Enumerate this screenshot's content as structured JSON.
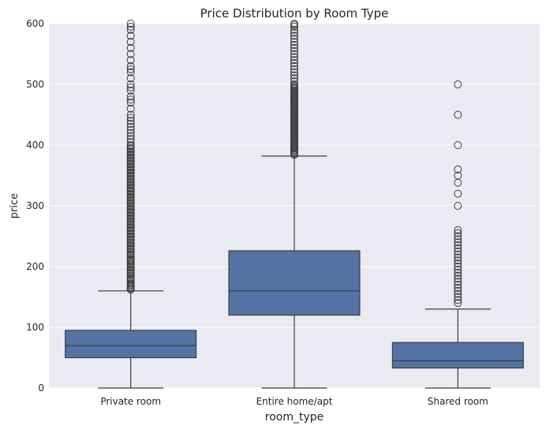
{
  "chart_data": {
    "type": "box",
    "title": "Price Distribution by Room Type",
    "xlabel": "room_type",
    "ylabel": "price",
    "ylim": [
      0,
      600
    ],
    "yticks": [
      0,
      100,
      200,
      300,
      400,
      500,
      600
    ],
    "grid": true,
    "colors": {
      "background": "#eaeaf2",
      "box": "#5572a4",
      "line": "#3d3d3d",
      "grid": "#ffffff"
    },
    "categories": [
      "Private room",
      "Entire home/apt",
      "Shared room"
    ],
    "boxes": [
      {
        "category": "Private room",
        "whisker_low": 0,
        "q1": 50,
        "median": 70,
        "q3": 95,
        "whisker_high": 160,
        "outliers": [
          162,
          164,
          166,
          168,
          170,
          172,
          175,
          178,
          180,
          182,
          185,
          188,
          190,
          193,
          195,
          198,
          200,
          203,
          205,
          208,
          210,
          212,
          215,
          218,
          220,
          222,
          225,
          228,
          230,
          233,
          235,
          238,
          240,
          243,
          245,
          248,
          250,
          253,
          255,
          258,
          260,
          263,
          265,
          268,
          270,
          273,
          275,
          278,
          280,
          283,
          285,
          288,
          290,
          293,
          295,
          298,
          300,
          303,
          305,
          308,
          310,
          313,
          315,
          318,
          320,
          323,
          325,
          328,
          330,
          333,
          335,
          338,
          340,
          343,
          345,
          348,
          350,
          353,
          355,
          358,
          360,
          363,
          365,
          368,
          370,
          373,
          375,
          378,
          380,
          383,
          385,
          388,
          390,
          393,
          395,
          398,
          400,
          405,
          410,
          415,
          420,
          425,
          430,
          435,
          440,
          445,
          450,
          460,
          470,
          475,
          480,
          490,
          495,
          500,
          510,
          520,
          525,
          530,
          540,
          550,
          560,
          570,
          580,
          590,
          595,
          600
        ]
      },
      {
        "category": "Entire home/apt",
        "whisker_low": 0,
        "q1": 120,
        "median": 160,
        "q3": 226,
        "whisker_high": 382,
        "outliers": [
          384,
          386,
          388,
          390,
          392,
          394,
          396,
          398,
          400,
          402,
          404,
          406,
          408,
          410,
          412,
          414,
          416,
          418,
          420,
          422,
          424,
          426,
          428,
          430,
          432,
          434,
          436,
          438,
          440,
          442,
          444,
          446,
          448,
          450,
          452,
          454,
          456,
          458,
          460,
          462,
          464,
          466,
          468,
          470,
          472,
          474,
          476,
          478,
          480,
          482,
          484,
          486,
          488,
          490,
          492,
          494,
          496,
          498,
          500,
          505,
          510,
          515,
          520,
          525,
          530,
          535,
          540,
          545,
          550,
          555,
          560,
          565,
          570,
          575,
          580,
          585,
          590,
          595,
          598,
          600
        ]
      },
      {
        "category": "Shared room",
        "whisker_low": 0,
        "q1": 33,
        "median": 45,
        "q3": 75,
        "whisker_high": 130,
        "outliers": [
          140,
          145,
          150,
          155,
          160,
          165,
          170,
          175,
          180,
          185,
          190,
          195,
          200,
          205,
          210,
          215,
          220,
          225,
          230,
          235,
          240,
          245,
          250,
          255,
          260,
          300,
          320,
          338,
          350,
          360,
          400,
          450,
          500
        ]
      }
    ]
  }
}
